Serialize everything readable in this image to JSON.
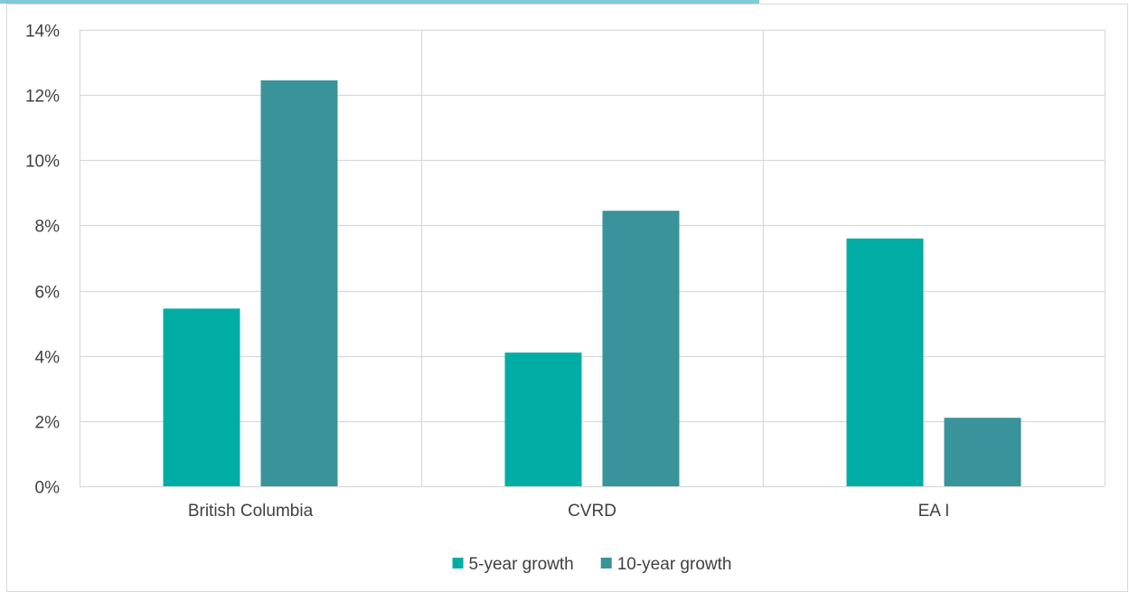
{
  "chart_data": {
    "type": "bar",
    "title": "",
    "xlabel": "",
    "ylabel": "",
    "categories": [
      "British Columbia",
      "CVRD",
      "EA I"
    ],
    "series": [
      {
        "name": "5-year growth",
        "values": [
          5.45,
          4.1,
          7.6
        ],
        "color": "#00ADA5"
      },
      {
        "name": "10-year growth",
        "values": [
          12.45,
          8.45,
          2.1
        ],
        "color": "#38939A"
      }
    ],
    "ylim": [
      0,
      14
    ],
    "yticks": [
      0,
      2,
      4,
      6,
      8,
      10,
      12,
      14
    ],
    "ytick_format": "percent",
    "grid": {
      "horizontal": true,
      "vertical_category_separators": true
    },
    "legend_position": "bottom-center"
  },
  "colors": {
    "gridline": "#D9D9D9",
    "border": "#D9D9D9",
    "text": "#404040",
    "top_caption_accent": "#1E9FB5"
  }
}
